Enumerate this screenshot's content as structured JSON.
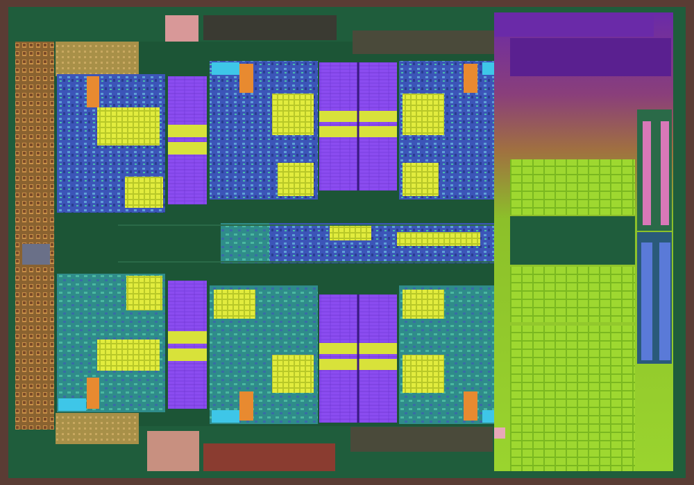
{
  "image": {
    "subject": "die-photo",
    "text": []
  },
  "colors": {
    "background": "#1a1410",
    "frame": "#5a3c34",
    "substrate": "#1f5d3c",
    "substrate_dark": "#17462d",
    "io_ring": "#a87a3a",
    "core_blue": "#3c55b8",
    "core_teal": "#2f8c8a",
    "cache_violet": "#7a3fe0",
    "logic_yellow": "#d8e23a",
    "logic_orange": "#e88a30",
    "cyan_block": "#3ec6e8",
    "gpu_green": "#8fcf2a",
    "gpu_violet": "#6a2aa8",
    "pink_pad": "#d89898"
  },
  "blocks": [
    {
      "name": "core-top-left"
    },
    {
      "name": "core-top-mid-left"
    },
    {
      "name": "core-top-mid-right"
    },
    {
      "name": "core-bottom-left"
    },
    {
      "name": "core-bottom-mid-left"
    },
    {
      "name": "core-bottom-mid-right"
    },
    {
      "name": "l2-cache-top-left"
    },
    {
      "name": "l2-cache-top-center"
    },
    {
      "name": "l2-cache-bottom-left"
    },
    {
      "name": "l2-cache-bottom-center"
    },
    {
      "name": "northbridge-strip"
    },
    {
      "name": "gpu-array"
    },
    {
      "name": "io-ring-left"
    },
    {
      "name": "memory-controller-bottom"
    }
  ]
}
